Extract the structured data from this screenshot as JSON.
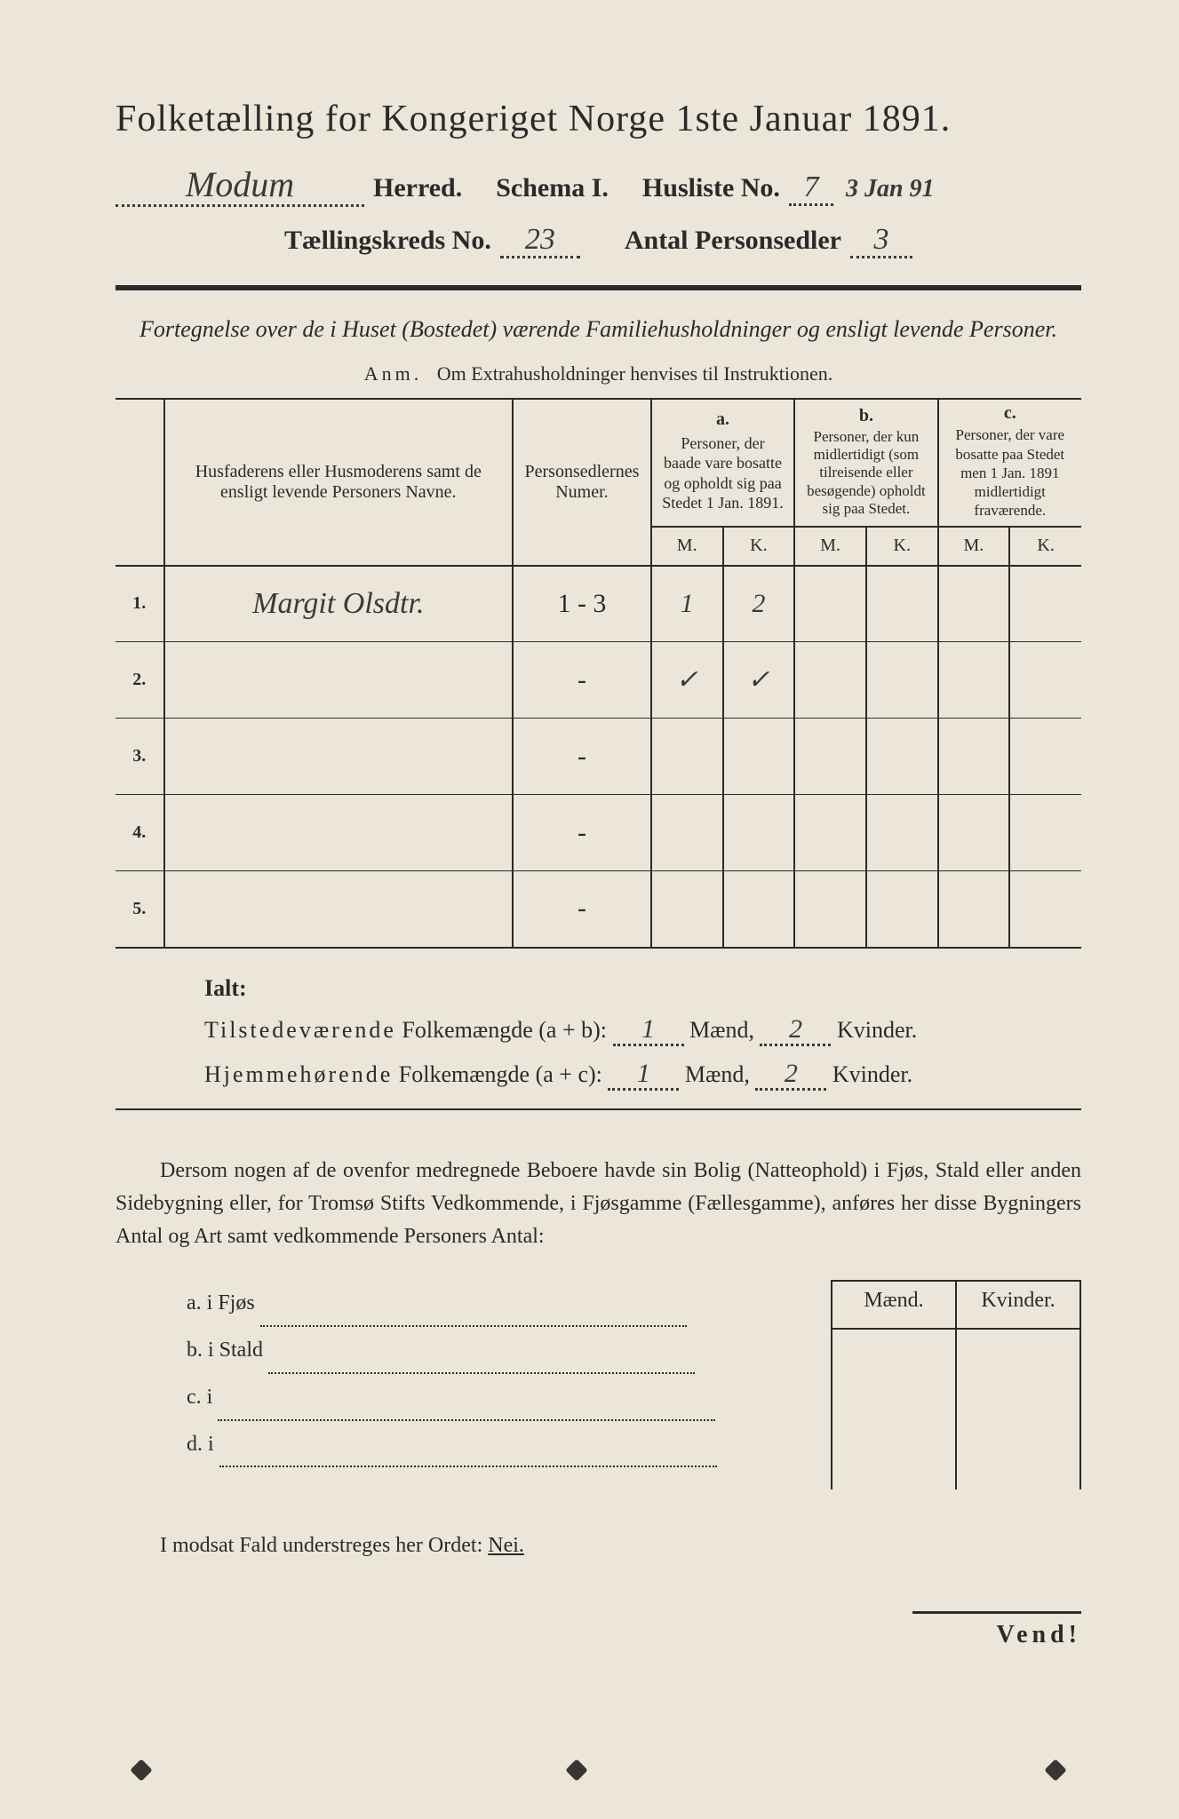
{
  "colors": {
    "paper": "#ece6da",
    "ink": "#2a2a2a",
    "handwriting": "#3a3a3a"
  },
  "header": {
    "title": "Folketælling for Kongeriget Norge 1ste Januar 1891.",
    "herred_value": "Modum",
    "herred_label": "Herred.",
    "schema_label": "Schema I.",
    "husliste_label": "Husliste No.",
    "husliste_value": "7",
    "date_note": "3 Jan 91",
    "kreds_label": "Tællingskreds No.",
    "kreds_value": "23",
    "antal_label": "Antal Personsedler",
    "antal_value": "3"
  },
  "subtitle": "Fortegnelse over de i Huset (Bostedet) værende Familiehusholdninger og ensligt levende Personer.",
  "anm_label": "Anm.",
  "anm_text": "Om Extrahusholdninger henvises til Instruktionen.",
  "table": {
    "col_name": "Husfaderens eller Husmoderens samt de ensligt levende Personers Navne.",
    "col_ps": "Personsedlernes Numer.",
    "col_a_label": "a.",
    "col_a": "Personer, der baade vare bosatte og opholdt sig paa Stedet 1 Jan. 1891.",
    "col_b_label": "b.",
    "col_b": "Personer, der kun midlertidigt (som tilreisende eller besøgende) opholdt sig paa Stedet.",
    "col_c_label": "c.",
    "col_c": "Personer, der vare bosatte paa Stedet men 1 Jan. 1891 midlertidigt fraværende.",
    "m": "M.",
    "k": "K.",
    "rows": [
      {
        "n": "1.",
        "name": "Margit Olsdtr.",
        "ps": "1 - 3",
        "a_m": "1",
        "a_k": "2",
        "b_m": "",
        "b_k": "",
        "c_m": "",
        "c_k": ""
      },
      {
        "n": "2.",
        "name": "",
        "ps": "-",
        "a_m": "✓",
        "a_k": "✓",
        "b_m": "",
        "b_k": "",
        "c_m": "",
        "c_k": ""
      },
      {
        "n": "3.",
        "name": "",
        "ps": "-",
        "a_m": "",
        "a_k": "",
        "b_m": "",
        "b_k": "",
        "c_m": "",
        "c_k": ""
      },
      {
        "n": "4.",
        "name": "",
        "ps": "-",
        "a_m": "",
        "a_k": "",
        "b_m": "",
        "b_k": "",
        "c_m": "",
        "c_k": ""
      },
      {
        "n": "5.",
        "name": "",
        "ps": "-",
        "a_m": "",
        "a_k": "",
        "b_m": "",
        "b_k": "",
        "c_m": "",
        "c_k": ""
      }
    ]
  },
  "totals": {
    "ialt": "Ialt:",
    "tilstede_label": "Tilstedeværende",
    "hjemme_label": "Hjemmehørende",
    "folke": "Folkemængde",
    "ab": "(a + b):",
    "ac": "(a + c):",
    "maend": "Mænd,",
    "kvinder": "Kvinder.",
    "t_m": "1",
    "t_k": "2",
    "h_m": "1",
    "h_k": "2"
  },
  "paragraph": "Dersom nogen af de ovenfor medregnede Beboere havde sin Bolig (Natteophold) i Fjøs, Stald eller anden Sidebygning eller, for Tromsø Stifts Vedkommende, i Fjøsgamme (Fællesgamme), anføres her disse Bygningers Antal og Art samt vedkommende Personers Antal:",
  "buildings": {
    "a": "a.   i      Fjøs",
    "b": "b.   i      Stald",
    "c": "c.   i",
    "d": "d.   i",
    "maend": "Mænd.",
    "kvinder": "Kvinder."
  },
  "nei_line": "I modsat Fald understreges her Ordet:",
  "nei": "Nei.",
  "vend": "Vend!"
}
